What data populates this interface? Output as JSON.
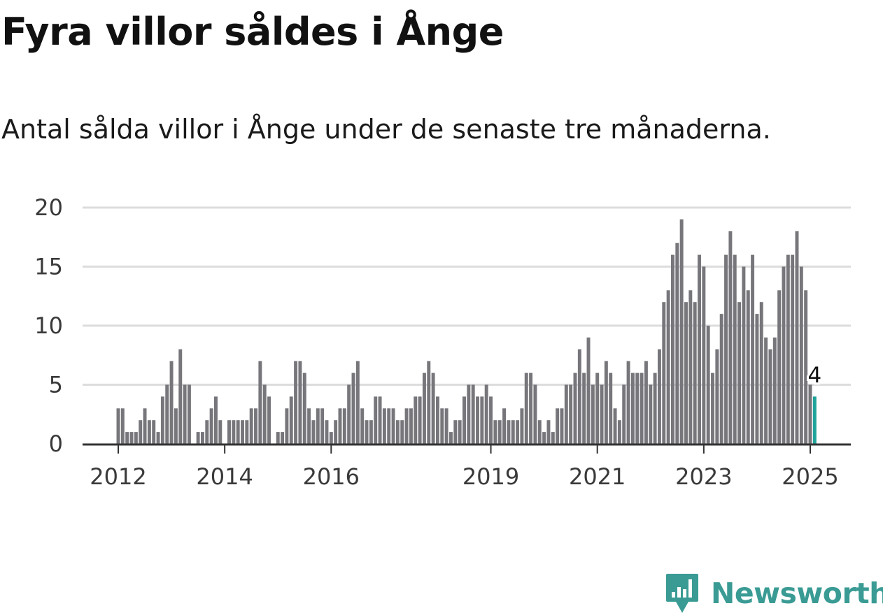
{
  "header": {
    "title": "Fyra villor såldes i Ånge",
    "subtitle": "Antal sålda villor i Ånge under de senaste tre månaderna."
  },
  "brand": {
    "name": "Newsworthy",
    "icon": "bar-chart-speech-bubble-icon"
  },
  "colors": {
    "bars": "#77767b",
    "highlight": "#1fa39a",
    "grid": "#dcdcdc",
    "axis": "#333333",
    "brand": "#3a9b94"
  },
  "chart_data": {
    "type": "bar",
    "title": "Fyra villor såldes i Ånge",
    "subtitle": "Antal sålda villor i Ånge under de senaste tre månaderna.",
    "xlabel": "",
    "ylabel": "",
    "ylim": [
      0,
      20
    ],
    "yticks": [
      0,
      5,
      10,
      15,
      20
    ],
    "grid": true,
    "legend": "none",
    "x_start": "2012-01",
    "x_end": "2025-01",
    "xticks": [
      {
        "label": "2012",
        "date": "2012-01"
      },
      {
        "label": "2014",
        "date": "2014-01"
      },
      {
        "label": "2016",
        "date": "2016-01"
      },
      {
        "label": "2019",
        "date": "2019-01"
      },
      {
        "label": "2021",
        "date": "2021-01"
      },
      {
        "label": "2023",
        "date": "2023-01"
      },
      {
        "label": "2025",
        "date": "2025-01"
      }
    ],
    "values": [
      3,
      3,
      1,
      1,
      1,
      2,
      3,
      2,
      2,
      1,
      4,
      5,
      7,
      3,
      8,
      5,
      5,
      0,
      1,
      1,
      2,
      3,
      4,
      2,
      0,
      2,
      2,
      2,
      2,
      2,
      3,
      3,
      7,
      5,
      4,
      0,
      1,
      1,
      3,
      4,
      7,
      7,
      6,
      3,
      2,
      3,
      3,
      2,
      1,
      2,
      3,
      3,
      5,
      6,
      7,
      3,
      2,
      2,
      4,
      4,
      3,
      3,
      3,
      2,
      2,
      3,
      3,
      4,
      4,
      6,
      7,
      6,
      4,
      3,
      3,
      1,
      2,
      2,
      4,
      5,
      5,
      4,
      4,
      5,
      4,
      2,
      2,
      3,
      2,
      2,
      2,
      3,
      6,
      6,
      5,
      2,
      1,
      2,
      1,
      3,
      3,
      5,
      5,
      6,
      8,
      6,
      9,
      5,
      6,
      5,
      7,
      6,
      3,
      2,
      5,
      7,
      6,
      6,
      6,
      7,
      5,
      6,
      8,
      12,
      13,
      16,
      17,
      19,
      12,
      13,
      12,
      16,
      15,
      10,
      6,
      8,
      11,
      16,
      18,
      16,
      12,
      15,
      13,
      16,
      11,
      12,
      9,
      8,
      9,
      13,
      15,
      16,
      16,
      18,
      15,
      13,
      5,
      4
    ],
    "highlight": {
      "date": "2025-02",
      "value": 4,
      "label": "4"
    }
  }
}
